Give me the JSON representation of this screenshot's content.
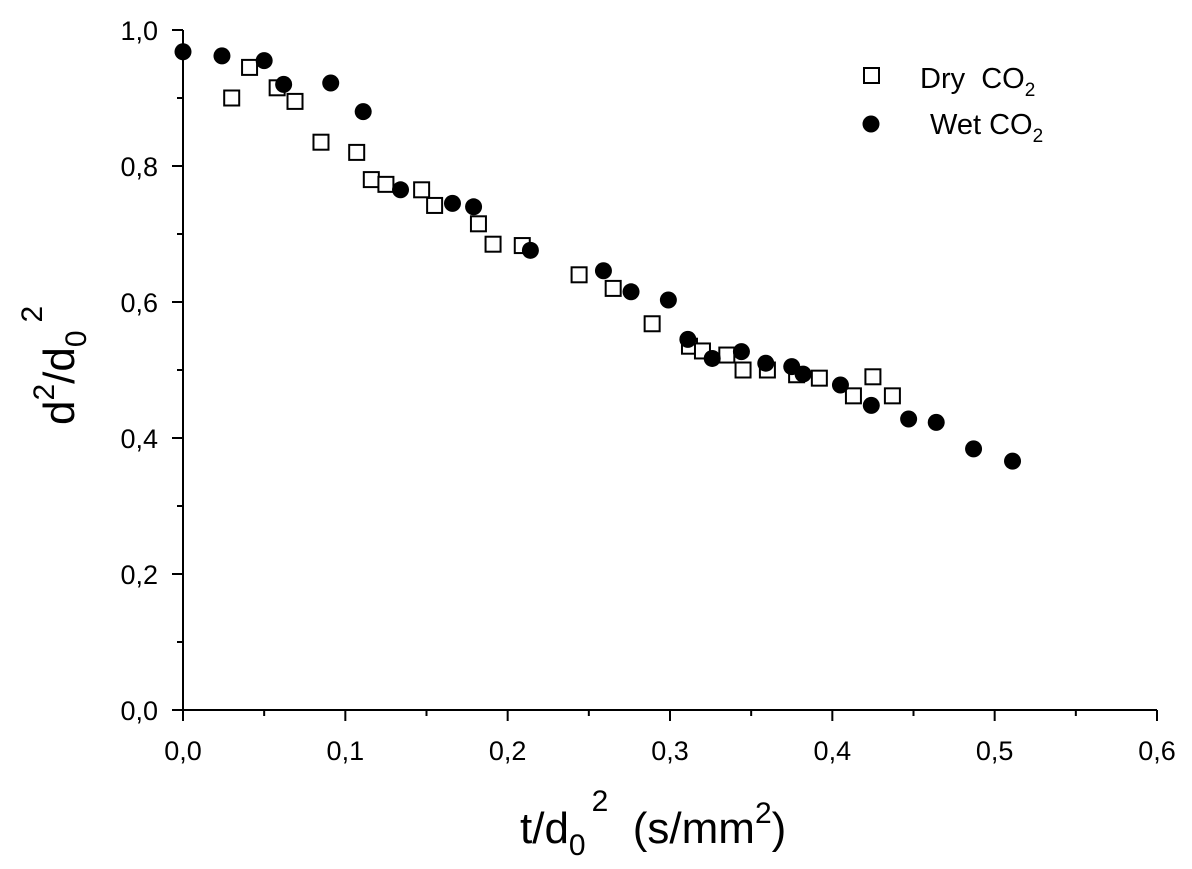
{
  "chart_data": {
    "type": "scatter",
    "xlabel": {
      "main": "t/d",
      "sub": "0",
      "sup": "2",
      "unit_prefix": "  (s/mm",
      "unit_sup": "2",
      "unit_suffix": ")"
    },
    "ylabel": {
      "a": "d",
      "a_sup": "2",
      "b": "/d",
      "b_sub": "0",
      "b_sup": "2"
    },
    "xlim": [
      0,
      0.6
    ],
    "ylim": [
      0,
      1.0
    ],
    "xticks": [
      "0,0",
      "0,1",
      "0,2",
      "0,3",
      "0,4",
      "0,5",
      "0,6"
    ],
    "yticks": [
      "0,0",
      "0,2",
      "0,4",
      "0,6",
      "0,8",
      "1,0"
    ],
    "grid": false,
    "legend_position": "top-right",
    "series": [
      {
        "name": "Dry  CO",
        "name_sub": "2",
        "marker": "open-square",
        "x": [
          0.03,
          0.041,
          0.058,
          0.069,
          0.085,
          0.107,
          0.116,
          0.125,
          0.147,
          0.155,
          0.182,
          0.191,
          0.209,
          0.244,
          0.265,
          0.289,
          0.312,
          0.32,
          0.335,
          0.345,
          0.36,
          0.378,
          0.392,
          0.413,
          0.425,
          0.437
        ],
        "y": [
          0.9,
          0.945,
          0.915,
          0.895,
          0.835,
          0.82,
          0.78,
          0.773,
          0.765,
          0.742,
          0.715,
          0.685,
          0.683,
          0.64,
          0.62,
          0.568,
          0.535,
          0.528,
          0.522,
          0.5,
          0.5,
          0.493,
          0.488,
          0.462,
          0.49,
          0.462
        ]
      },
      {
        "name": "Wet CO",
        "name_sub": "2",
        "marker": "filled-circle",
        "x": [
          0.0,
          0.024,
          0.05,
          0.062,
          0.091,
          0.111,
          0.134,
          0.166,
          0.179,
          0.214,
          0.259,
          0.276,
          0.299,
          0.311,
          0.326,
          0.344,
          0.359,
          0.375,
          0.382,
          0.405,
          0.424,
          0.447,
          0.464,
          0.487,
          0.511
        ],
        "y": [
          0.968,
          0.962,
          0.955,
          0.92,
          0.922,
          0.88,
          0.765,
          0.745,
          0.74,
          0.676,
          0.646,
          0.615,
          0.603,
          0.545,
          0.517,
          0.527,
          0.51,
          0.505,
          0.494,
          0.478,
          0.448,
          0.428,
          0.423,
          0.384,
          0.366
        ]
      }
    ]
  }
}
